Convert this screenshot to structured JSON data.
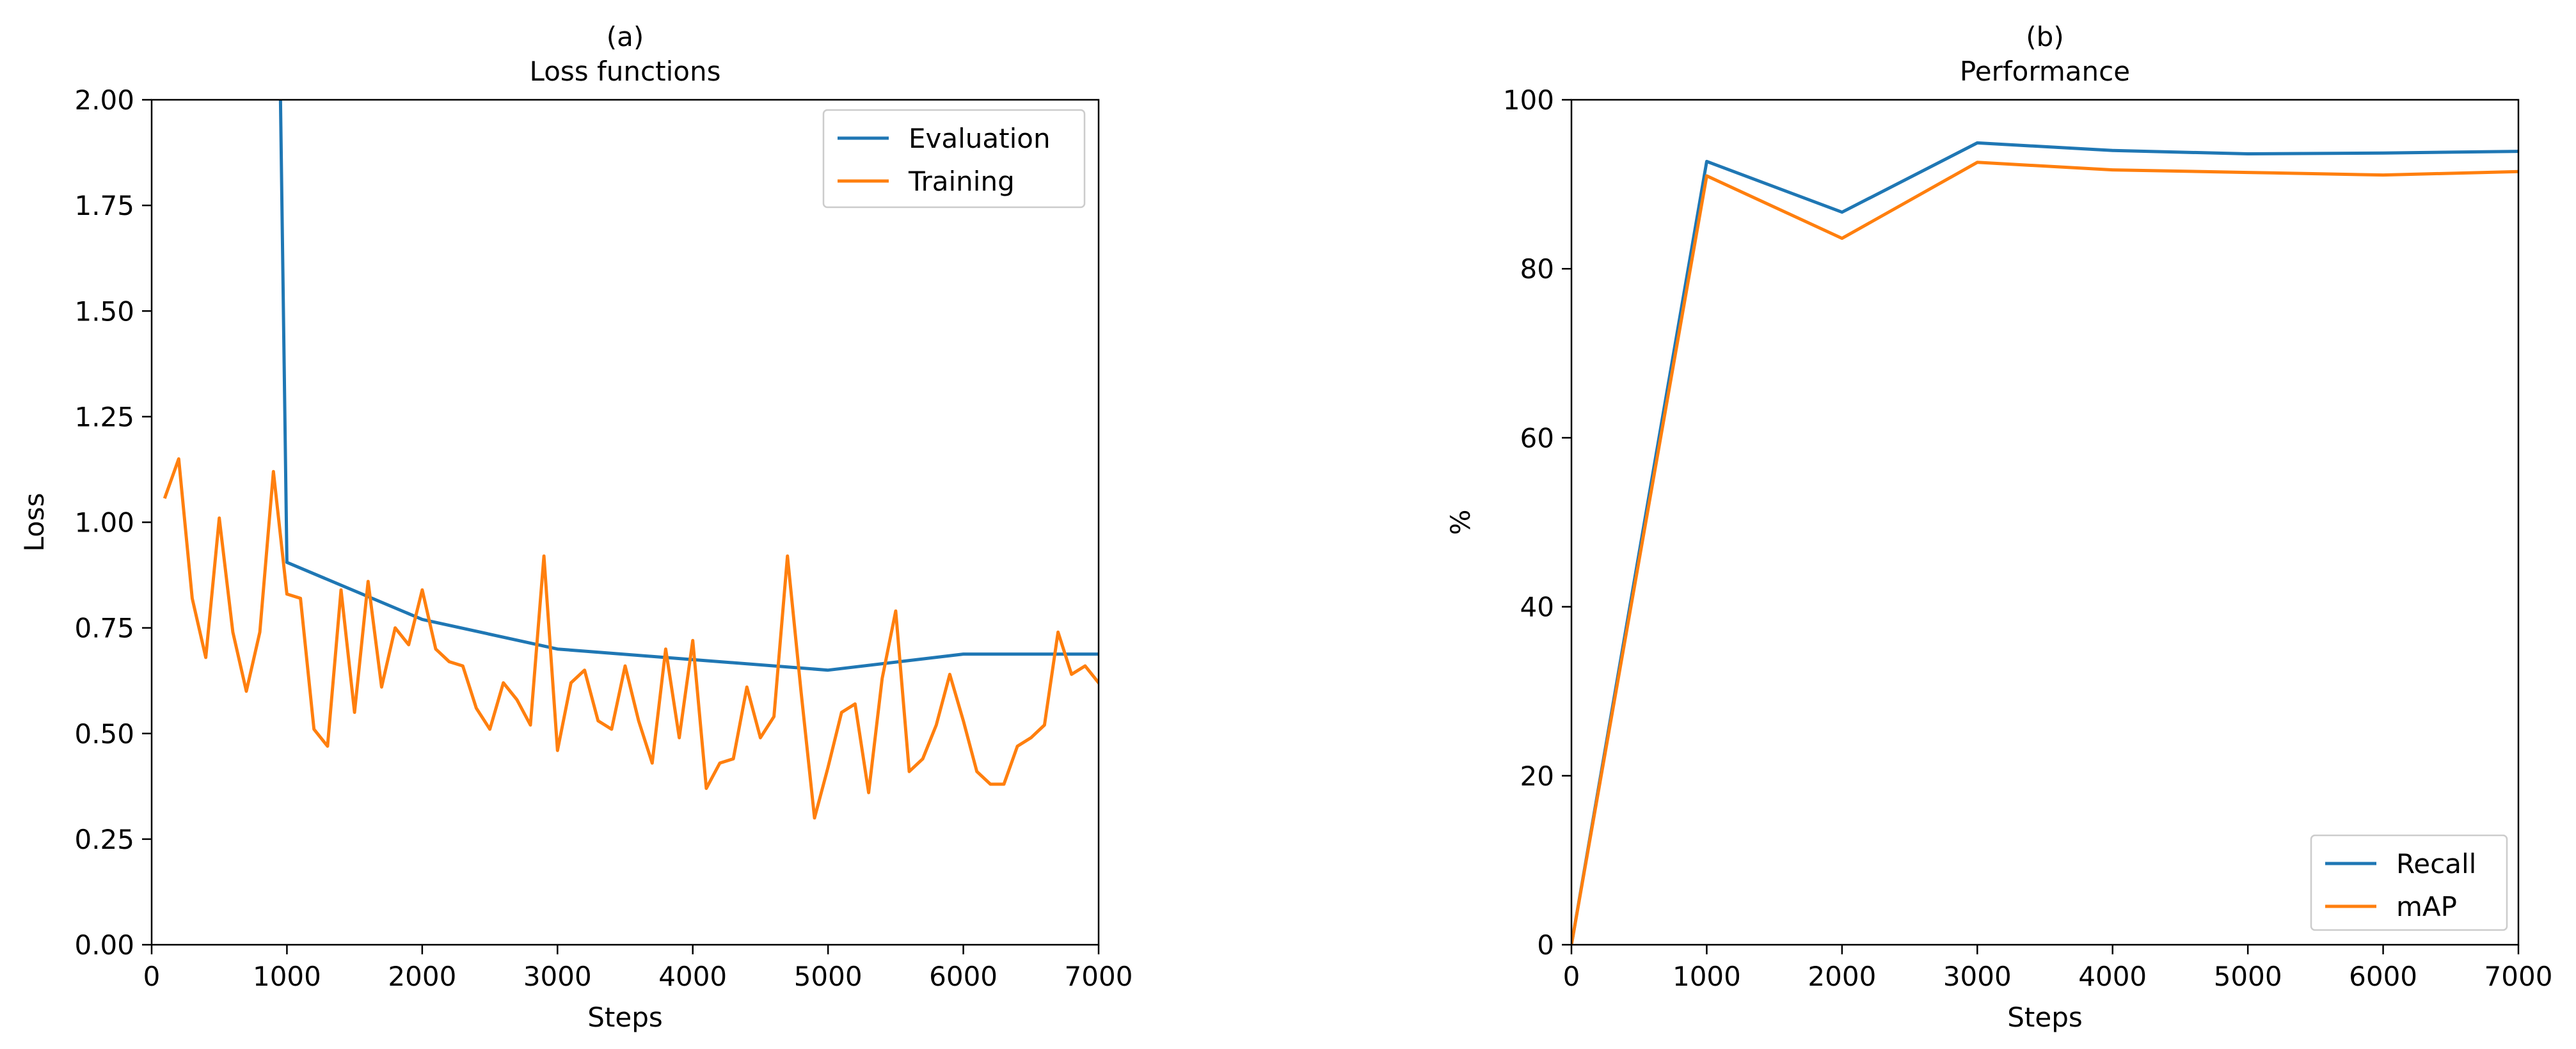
{
  "chart_data": [
    {
      "type": "line",
      "panel_label": "(a)",
      "title": "Loss functions",
      "xlabel": "Steps",
      "ylabel": "Loss",
      "xlim": [
        0,
        7000
      ],
      "ylim": [
        0,
        2.0
      ],
      "xticks": [
        0,
        1000,
        2000,
        3000,
        4000,
        5000,
        6000,
        7000
      ],
      "xtick_labels": [
        "0",
        "1000",
        "2000",
        "3000",
        "4000",
        "5000",
        "6000",
        "7000"
      ],
      "yticks": [
        0,
        0.25,
        0.5,
        0.75,
        1.0,
        1.25,
        1.5,
        1.75,
        2.0
      ],
      "ytick_labels": [
        "0.00",
        "0.25",
        "0.50",
        "0.75",
        "1.00",
        "1.25",
        "1.50",
        "1.75",
        "2.00"
      ],
      "legend_position": "top-right",
      "series": [
        {
          "name": "Evaluation",
          "color": "#1f77b4",
          "x": [
            950,
            1000,
            2000,
            3000,
            4000,
            5000,
            6000,
            7000
          ],
          "y": [
            2.05,
            0.905,
            0.77,
            0.7,
            0.675,
            0.65,
            0.688,
            0.688
          ]
        },
        {
          "name": "Training",
          "color": "#ff7f0e",
          "x": [
            100,
            200,
            300,
            400,
            500,
            600,
            700,
            800,
            900,
            1000,
            1100,
            1200,
            1300,
            1400,
            1500,
            1600,
            1700,
            1800,
            1900,
            2000,
            2100,
            2200,
            2300,
            2400,
            2500,
            2600,
            2700,
            2800,
            2900,
            3000,
            3100,
            3200,
            3300,
            3400,
            3500,
            3600,
            3700,
            3800,
            3900,
            4000,
            4100,
            4200,
            4300,
            4400,
            4500,
            4600,
            4700,
            4800,
            4900,
            5000,
            5100,
            5200,
            5300,
            5400,
            5500,
            5600,
            5700,
            5800,
            5900,
            6000,
            6100,
            6200,
            6300,
            6400,
            6500,
            6600,
            6700,
            6800,
            6900,
            7000
          ],
          "y": [
            1.06,
            1.15,
            0.82,
            0.68,
            1.01,
            0.74,
            0.6,
            0.74,
            1.12,
            0.83,
            0.82,
            0.51,
            0.47,
            0.84,
            0.55,
            0.86,
            0.61,
            0.75,
            0.71,
            0.84,
            0.7,
            0.67,
            0.66,
            0.56,
            0.51,
            0.62,
            0.58,
            0.52,
            0.92,
            0.46,
            0.62,
            0.65,
            0.53,
            0.51,
            0.66,
            0.53,
            0.43,
            0.7,
            0.49,
            0.72,
            0.37,
            0.43,
            0.44,
            0.61,
            0.49,
            0.54,
            0.92,
            0.6,
            0.3,
            0.42,
            0.55,
            0.57,
            0.36,
            0.63,
            0.79,
            0.41,
            0.44,
            0.52,
            0.64,
            0.53,
            0.41,
            0.38,
            0.38,
            0.47,
            0.49,
            0.52,
            0.74,
            0.64,
            0.66,
            0.62
          ]
        }
      ]
    },
    {
      "type": "line",
      "panel_label": "(b)",
      "title": "Performance",
      "xlabel": "Steps",
      "ylabel": "%",
      "xlim": [
        0,
        7000
      ],
      "ylim": [
        0,
        100
      ],
      "xticks": [
        0,
        1000,
        2000,
        3000,
        4000,
        5000,
        6000,
        7000
      ],
      "xtick_labels": [
        "0",
        "1000",
        "2000",
        "3000",
        "4000",
        "5000",
        "6000",
        "7000"
      ],
      "yticks": [
        0,
        20,
        40,
        60,
        80,
        100
      ],
      "ytick_labels": [
        "0",
        "20",
        "40",
        "60",
        "80",
        "100"
      ],
      "legend_position": "bottom-right",
      "series": [
        {
          "name": "Recall",
          "color": "#1f77b4",
          "x": [
            0,
            1000,
            2000,
            3000,
            4000,
            5000,
            6000,
            7000
          ],
          "y": [
            0,
            92.7,
            86.7,
            94.9,
            94.0,
            93.6,
            93.7,
            93.9
          ]
        },
        {
          "name": "mAP",
          "color": "#ff7f0e",
          "x": [
            0,
            1000,
            2000,
            3000,
            4000,
            5000,
            6000,
            7000
          ],
          "y": [
            0,
            91.0,
            83.6,
            92.6,
            91.7,
            91.4,
            91.1,
            91.5
          ]
        }
      ]
    }
  ]
}
